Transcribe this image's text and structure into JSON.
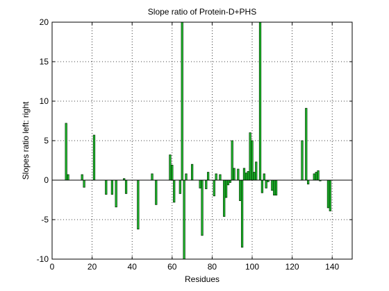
{
  "chart_data": {
    "type": "bar",
    "title": "Slope ratio of Protein-D+PHS",
    "xlabel": "Residues",
    "ylabel": "Slopes ratio left: right",
    "xlim": [
      0,
      150
    ],
    "ylim": [
      -10,
      20
    ],
    "xticks": [
      0,
      20,
      40,
      60,
      80,
      100,
      120,
      140
    ],
    "yticks": [
      -10,
      -5,
      0,
      5,
      10,
      15,
      20
    ],
    "grid": true,
    "bar_color": "#22cc33",
    "edge_color": "#003300",
    "x": [
      7,
      8,
      15,
      16,
      21,
      27,
      30,
      32,
      36,
      37,
      43,
      50,
      52,
      59,
      60,
      61,
      64,
      65,
      66,
      67,
      70,
      74,
      75,
      77,
      78,
      81,
      82,
      84,
      86,
      87,
      88,
      89,
      90,
      91,
      93,
      94,
      95,
      96,
      97,
      98,
      99,
      100,
      101,
      102,
      104,
      105,
      106,
      107,
      108,
      110,
      111,
      112,
      125,
      127,
      128,
      131,
      132,
      133,
      134,
      138,
      139
    ],
    "values": [
      7.2,
      0.7,
      0.7,
      -0.9,
      5.7,
      -1.8,
      -1.8,
      -3.4,
      0.2,
      -1.7,
      -6.2,
      0.8,
      -3.1,
      3.2,
      1.9,
      -2.8,
      -1.7,
      20,
      -10,
      0.8,
      2.0,
      -1.0,
      -7.0,
      -1.1,
      1.0,
      -2.0,
      0.8,
      0.7,
      -4.6,
      -2.2,
      -0.6,
      -0.3,
      5.0,
      1.5,
      1.4,
      -2.6,
      -8.5,
      1.5,
      0.9,
      1.1,
      6.0,
      5.0,
      1.0,
      2.3,
      20,
      -1.6,
      0.8,
      -1.0,
      -0.2,
      -1.3,
      -1.9,
      -1.9,
      5.0,
      9.1,
      -0.5,
      0.8,
      1.0,
      1.2,
      -0.1,
      -3.5,
      -3.9
    ]
  }
}
